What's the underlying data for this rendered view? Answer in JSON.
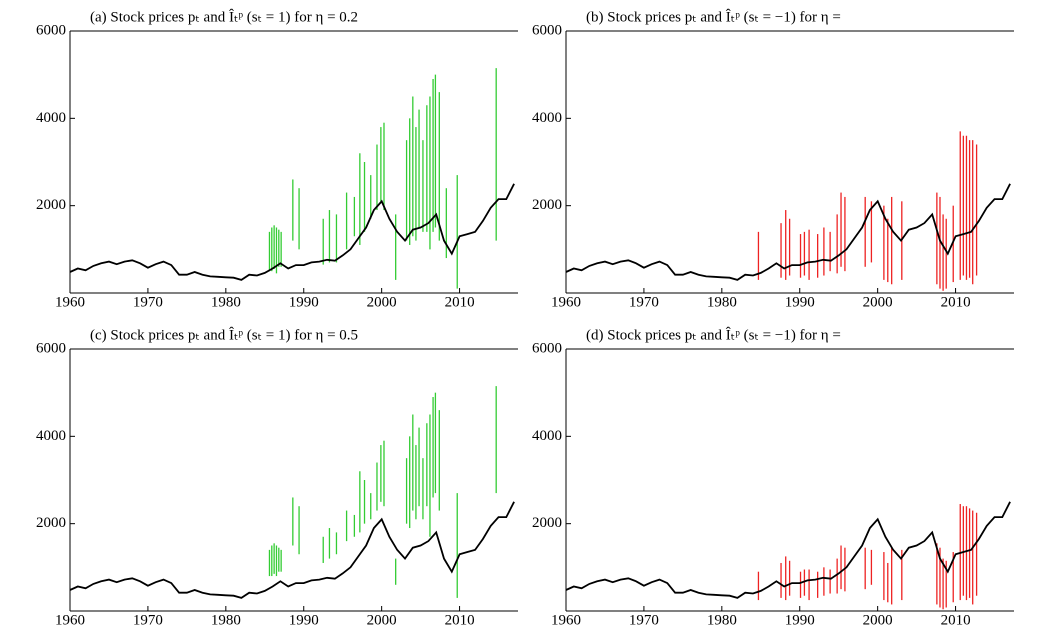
{
  "chart_data": [
    {
      "type": "line",
      "title": "(a) Stock prices pₜ and Îₜᵖ (sₜ = 1) for η = 0.2",
      "line_color": "#000000",
      "interval_color": "#33cc33",
      "xlim": [
        1960,
        2017.5
      ],
      "ylim": [
        0,
        6000
      ],
      "xticks": [
        1960,
        1970,
        1980,
        1990,
        2000,
        2010
      ],
      "yticks": [
        2000,
        4000,
        6000
      ],
      "x": [
        1960,
        1961,
        1962,
        1963,
        1964,
        1965,
        1966,
        1967,
        1968,
        1969,
        1970,
        1971,
        1972,
        1973,
        1974,
        1975,
        1976,
        1977,
        1978,
        1979,
        1980,
        1981,
        1982,
        1983,
        1984,
        1985,
        1986,
        1987,
        1988,
        1989,
        1990,
        1991,
        1992,
        1993,
        1994,
        1995,
        1996,
        1997,
        1998,
        1999,
        2000,
        2001,
        2002,
        2003,
        2004,
        2005,
        2006,
        2007,
        2008,
        2009,
        2010,
        2011,
        2012,
        2013,
        2014,
        2015,
        2016,
        2017
      ],
      "values": [
        480,
        560,
        520,
        620,
        680,
        720,
        660,
        720,
        750,
        680,
        580,
        660,
        720,
        640,
        420,
        420,
        480,
        420,
        380,
        370,
        360,
        350,
        300,
        420,
        400,
        460,
        560,
        680,
        560,
        640,
        640,
        700,
        720,
        760,
        740,
        860,
        1000,
        1250,
        1500,
        1900,
        2100,
        1700,
        1400,
        1200,
        1450,
        1500,
        1600,
        1800,
        1200,
        900,
        1300,
        1350,
        1400,
        1650,
        1950,
        2150,
        2150,
        2500
      ],
      "intervals": {
        "x": [
          1985.6,
          1985.9,
          1986.2,
          1986.5,
          1986.8,
          1987.1,
          1988.6,
          1989.4,
          1992.5,
          1993.3,
          1994.2,
          1995.5,
          1996.5,
          1997.2,
          1997.8,
          1998.6,
          1999.4,
          1999.9,
          2000.3,
          2001.8,
          2003.2,
          2003.6,
          2004.0,
          2004.4,
          2004.8,
          2005.3,
          2005.8,
          2006.2,
          2006.6,
          2006.9,
          2007.4,
          2008.3,
          2009.7,
          2014.7
        ],
        "low": [
          500,
          500,
          550,
          450,
          600,
          600,
          1200,
          1000,
          650,
          700,
          700,
          1000,
          1300,
          1100,
          1400,
          1700,
          1900,
          2100,
          1900,
          300,
          1200,
          1100,
          1300,
          1200,
          1500,
          1400,
          1400,
          1000,
          1400,
          1500,
          1200,
          800,
          100,
          1200
        ],
        "high": [
          1400,
          1500,
          1550,
          1500,
          1450,
          1400,
          2600,
          2400,
          1700,
          1900,
          1800,
          2300,
          2200,
          3200,
          3000,
          2700,
          3400,
          3800,
          3900,
          1800,
          3500,
          4000,
          4500,
          3800,
          4200,
          3500,
          4300,
          4500,
          4900,
          5000,
          4600,
          2400,
          2700,
          5150
        ]
      }
    },
    {
      "type": "line",
      "title": "(b) Stock prices pₜ and Îₜᵖ (sₜ = −1) for η =",
      "line_color": "#000000",
      "interval_color": "#ee2222",
      "xlim": [
        1960,
        2017.5
      ],
      "ylim": [
        0,
        6000
      ],
      "xticks": [
        1960,
        1970,
        1980,
        1990,
        2000,
        2010
      ],
      "yticks": [
        2000,
        4000,
        6000
      ],
      "x": [
        1960,
        1961,
        1962,
        1963,
        1964,
        1965,
        1966,
        1967,
        1968,
        1969,
        1970,
        1971,
        1972,
        1973,
        1974,
        1975,
        1976,
        1977,
        1978,
        1979,
        1980,
        1981,
        1982,
        1983,
        1984,
        1985,
        1986,
        1987,
        1988,
        1989,
        1990,
        1991,
        1992,
        1993,
        1994,
        1995,
        1996,
        1997,
        1998,
        1999,
        2000,
        2001,
        2002,
        2003,
        2004,
        2005,
        2006,
        2007,
        2008,
        2009,
        2010,
        2011,
        2012,
        2013,
        2014,
        2015,
        2016,
        2017
      ],
      "values": [
        480,
        560,
        520,
        620,
        680,
        720,
        660,
        720,
        750,
        680,
        580,
        660,
        720,
        640,
        420,
        420,
        480,
        420,
        380,
        370,
        360,
        350,
        300,
        420,
        400,
        460,
        560,
        680,
        560,
        640,
        640,
        700,
        720,
        760,
        740,
        860,
        1000,
        1250,
        1500,
        1900,
        2100,
        1700,
        1400,
        1200,
        1450,
        1500,
        1600,
        1800,
        1200,
        900,
        1300,
        1350,
        1400,
        1650,
        1950,
        2150,
        2150,
        2500
      ],
      "intervals": {
        "x": [
          1984.7,
          1987.6,
          1988.2,
          1988.7,
          1990.1,
          1990.6,
          1991.2,
          1992.3,
          1993.1,
          1993.9,
          1994.8,
          1995.3,
          1995.8,
          1998.4,
          1999.2,
          2000.8,
          2001.3,
          2001.8,
          2003.1,
          2007.6,
          2008.0,
          2008.4,
          2008.8,
          2009.7,
          2010.6,
          2011.0,
          2011.4,
          2011.8,
          2012.2,
          2012.7
        ],
        "low": [
          300,
          350,
          300,
          400,
          350,
          400,
          300,
          350,
          400,
          500,
          450,
          600,
          500,
          600,
          700,
          300,
          250,
          200,
          300,
          200,
          100,
          50,
          100,
          250,
          300,
          400,
          300,
          350,
          200,
          400
        ],
        "high": [
          1400,
          1600,
          1900,
          1700,
          1350,
          1400,
          1450,
          1350,
          1500,
          1400,
          1800,
          2300,
          2200,
          2200,
          2100,
          2000,
          1700,
          2200,
          2100,
          2300,
          2200,
          1800,
          1700,
          2000,
          3700,
          3600,
          3600,
          3500,
          3500,
          3400
        ]
      }
    },
    {
      "type": "line",
      "title": "(c) Stock prices pₜ and Îₜᵖ (sₜ = 1) for η = 0.5",
      "line_color": "#000000",
      "interval_color": "#33cc33",
      "xlim": [
        1960,
        2017.5
      ],
      "ylim": [
        0,
        6000
      ],
      "xticks": [
        1960,
        1970,
        1980,
        1990,
        2000,
        2010
      ],
      "yticks": [
        2000,
        4000,
        6000
      ],
      "x": [
        1960,
        1961,
        1962,
        1963,
        1964,
        1965,
        1966,
        1967,
        1968,
        1969,
        1970,
        1971,
        1972,
        1973,
        1974,
        1975,
        1976,
        1977,
        1978,
        1979,
        1980,
        1981,
        1982,
        1983,
        1984,
        1985,
        1986,
        1987,
        1988,
        1989,
        1990,
        1991,
        1992,
        1993,
        1994,
        1995,
        1996,
        1997,
        1998,
        1999,
        2000,
        2001,
        2002,
        2003,
        2004,
        2005,
        2006,
        2007,
        2008,
        2009,
        2010,
        2011,
        2012,
        2013,
        2014,
        2015,
        2016,
        2017
      ],
      "values": [
        480,
        560,
        520,
        620,
        680,
        720,
        660,
        720,
        750,
        680,
        580,
        660,
        720,
        640,
        420,
        420,
        480,
        420,
        380,
        370,
        360,
        350,
        300,
        420,
        400,
        460,
        560,
        680,
        560,
        640,
        640,
        700,
        720,
        760,
        740,
        860,
        1000,
        1250,
        1500,
        1900,
        2100,
        1700,
        1400,
        1200,
        1450,
        1500,
        1600,
        1800,
        1200,
        900,
        1300,
        1350,
        1400,
        1650,
        1950,
        2150,
        2150,
        2500
      ],
      "intervals": {
        "x": [
          1985.6,
          1985.9,
          1986.2,
          1986.5,
          1986.8,
          1987.1,
          1988.6,
          1989.4,
          1992.5,
          1993.3,
          1994.2,
          1995.5,
          1996.5,
          1997.2,
          1997.8,
          1998.6,
          1999.4,
          1999.9,
          2000.3,
          2001.8,
          2003.2,
          2003.6,
          2004.0,
          2004.4,
          2004.8,
          2005.3,
          2005.8,
          2006.2,
          2006.6,
          2006.9,
          2007.4,
          2009.7,
          2014.7
        ],
        "low": [
          800,
          800,
          850,
          800,
          900,
          900,
          1500,
          1300,
          1100,
          1200,
          1300,
          1600,
          1700,
          1800,
          2000,
          2100,
          2300,
          2500,
          2400,
          600,
          2000,
          1900,
          2300,
          2100,
          2400,
          2100,
          2400,
          1700,
          2600,
          2700,
          2300,
          300,
          2700
        ],
        "high": [
          1400,
          1500,
          1550,
          1500,
          1450,
          1400,
          2600,
          2400,
          1700,
          1900,
          1800,
          2300,
          2200,
          3200,
          3000,
          2700,
          3400,
          3800,
          3900,
          1200,
          3500,
          4000,
          4500,
          3800,
          4200,
          3500,
          4300,
          4500,
          4900,
          5000,
          4600,
          2700,
          5150
        ]
      }
    },
    {
      "type": "line",
      "title": "(d) Stock prices pₜ and Îₜᵖ (sₜ = −1) for η =",
      "line_color": "#000000",
      "interval_color": "#ee2222",
      "xlim": [
        1960,
        2017.5
      ],
      "ylim": [
        0,
        6000
      ],
      "xticks": [
        1960,
        1970,
        1980,
        1990,
        2000,
        2010
      ],
      "yticks": [
        2000,
        4000,
        6000
      ],
      "x": [
        1960,
        1961,
        1962,
        1963,
        1964,
        1965,
        1966,
        1967,
        1968,
        1969,
        1970,
        1971,
        1972,
        1973,
        1974,
        1975,
        1976,
        1977,
        1978,
        1979,
        1980,
        1981,
        1982,
        1983,
        1984,
        1985,
        1986,
        1987,
        1988,
        1989,
        1990,
        1991,
        1992,
        1993,
        1994,
        1995,
        1996,
        1997,
        1998,
        1999,
        2000,
        2001,
        2002,
        2003,
        2004,
        2005,
        2006,
        2007,
        2008,
        2009,
        2010,
        2011,
        2012,
        2013,
        2014,
        2015,
        2016,
        2017
      ],
      "values": [
        480,
        560,
        520,
        620,
        680,
        720,
        660,
        720,
        750,
        680,
        580,
        660,
        720,
        640,
        420,
        420,
        480,
        420,
        380,
        370,
        360,
        350,
        300,
        420,
        400,
        460,
        560,
        680,
        560,
        640,
        640,
        700,
        720,
        760,
        740,
        860,
        1000,
        1250,
        1500,
        1900,
        2100,
        1700,
        1400,
        1200,
        1450,
        1500,
        1600,
        1800,
        1200,
        900,
        1300,
        1350,
        1400,
        1650,
        1950,
        2150,
        2150,
        2500
      ],
      "intervals": {
        "x": [
          1984.7,
          1987.6,
          1988.2,
          1988.7,
          1990.1,
          1990.6,
          1991.2,
          1992.3,
          1993.1,
          1993.9,
          1994.8,
          1995.3,
          1995.8,
          1998.4,
          1999.2,
          2000.8,
          2001.3,
          2001.8,
          2003.1,
          2007.6,
          2008.0,
          2008.4,
          2008.8,
          2009.7,
          2010.6,
          2011.0,
          2011.4,
          2011.8,
          2012.2,
          2012.7
        ],
        "low": [
          250,
          300,
          250,
          350,
          300,
          350,
          250,
          300,
          350,
          400,
          400,
          500,
          450,
          500,
          600,
          250,
          200,
          150,
          250,
          150,
          80,
          40,
          80,
          200,
          250,
          350,
          250,
          300,
          150,
          350
        ],
        "high": [
          900,
          1100,
          1250,
          1150,
          900,
          950,
          950,
          900,
          1000,
          950,
          1200,
          1500,
          1450,
          1450,
          1400,
          1350,
          1100,
          1450,
          1400,
          1550,
          1450,
          1200,
          1150,
          1350,
          2450,
          2400,
          2400,
          2350,
          2300,
          2250
        ]
      }
    }
  ]
}
